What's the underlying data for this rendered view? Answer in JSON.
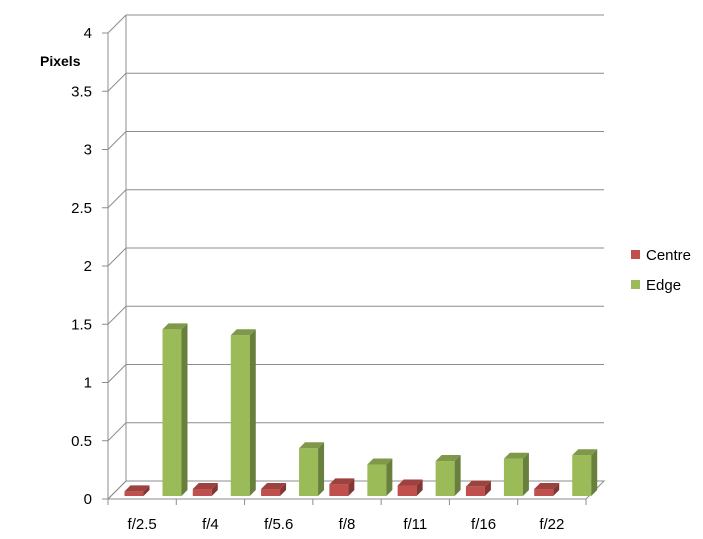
{
  "chart_data": {
    "type": "bar",
    "style": "3d-clustered-column",
    "ylabel": "Pixels",
    "xlabel": "",
    "ylim": [
      0,
      4
    ],
    "yticks": [
      "0",
      "0.5",
      "1",
      "1.5",
      "2",
      "2.5",
      "3",
      "3.5",
      "4"
    ],
    "grid": true,
    "legend_position": "right",
    "categories": [
      "f/2.5",
      "f/4",
      "f/5.6",
      "f/8",
      "f/11",
      "f/16",
      "f/22"
    ],
    "series": [
      {
        "name": "Centre",
        "color": "#C0504D",
        "values": [
          0.04,
          0.06,
          0.06,
          0.1,
          0.09,
          0.08,
          0.06
        ]
      },
      {
        "name": "Edge",
        "color": "#9BBB59",
        "values": [
          1.43,
          1.38,
          0.41,
          0.27,
          0.3,
          0.32,
          0.35
        ]
      }
    ]
  }
}
